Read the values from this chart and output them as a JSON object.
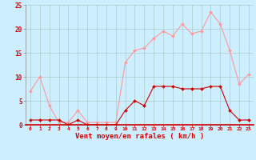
{
  "hours": [
    0,
    1,
    2,
    3,
    4,
    5,
    6,
    7,
    8,
    9,
    10,
    11,
    12,
    13,
    14,
    15,
    16,
    17,
    18,
    19,
    20,
    21,
    22,
    23
  ],
  "vent_moyen": [
    1,
    1,
    1,
    1,
    0,
    1,
    0,
    0,
    0,
    0,
    3,
    5,
    4,
    8,
    8,
    8,
    7.5,
    7.5,
    7.5,
    8,
    8,
    3,
    1,
    1
  ],
  "rafales": [
    7,
    10,
    4,
    0.5,
    0.5,
    3,
    0.5,
    0.5,
    0.5,
    0.5,
    13,
    15.5,
    16,
    18,
    19.5,
    18.5,
    21,
    19,
    19.5,
    23.5,
    21,
    15.5,
    8.5,
    10.5
  ],
  "color_moyen": "#cc0000",
  "color_rafales": "#ff9999",
  "bg_color": "#cceeff",
  "grid_color": "#aacccc",
  "xlabel": "Vent moyen/en rafales ( km/h )",
  "ylim": [
    0,
    25
  ],
  "yticks": [
    0,
    5,
    10,
    15,
    20,
    25
  ],
  "tick_color": "#dd0000"
}
